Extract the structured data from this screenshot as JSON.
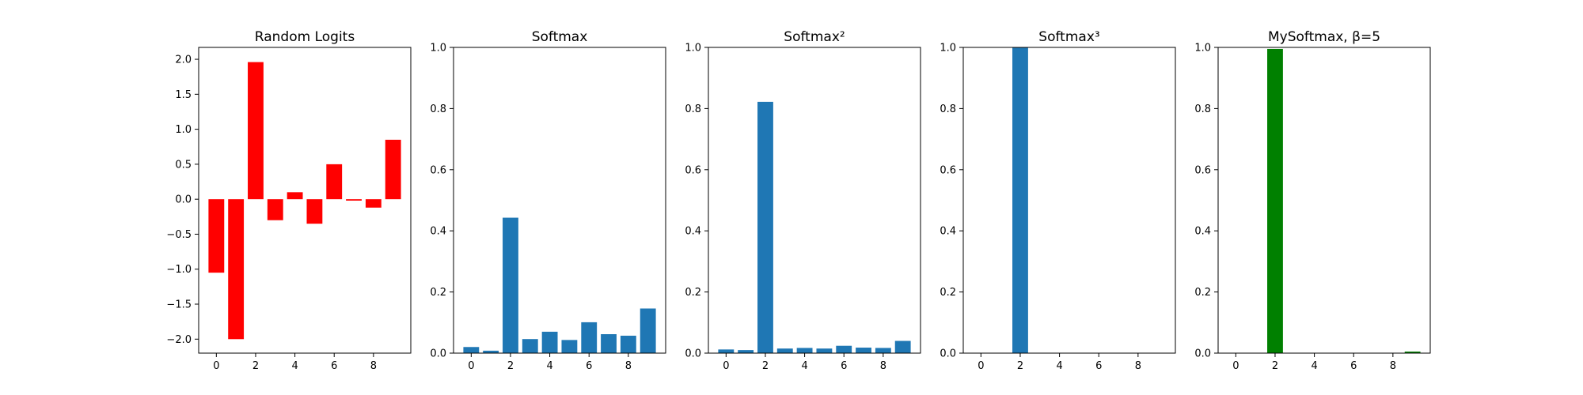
{
  "chart_data": [
    {
      "type": "bar",
      "title": "Random Logits",
      "x": [
        0,
        1,
        2,
        3,
        4,
        5,
        6,
        7,
        8,
        9
      ],
      "values": [
        -1.05,
        -2.0,
        1.96,
        -0.3,
        0.1,
        -0.35,
        0.5,
        -0.02,
        -0.12,
        0.85
      ],
      "color": "#ff0000",
      "ylim": [
        -2.2,
        2.17
      ],
      "yticks": [
        -2.0,
        -1.5,
        -1.0,
        -0.5,
        0.0,
        0.5,
        1.0,
        1.5,
        2.0
      ],
      "ytick_labels": [
        "−2.0",
        "−1.5",
        "−1.0",
        "−0.5",
        "0.0",
        "0.5",
        "1.0",
        "1.5",
        "2.0"
      ],
      "xticks": [
        0,
        2,
        4,
        6,
        8
      ],
      "xtick_labels": [
        "0",
        "2",
        "4",
        "6",
        "8"
      ],
      "xlabel": "",
      "ylabel": "",
      "grid": false
    },
    {
      "type": "bar",
      "title": "Softmax",
      "x": [
        0,
        1,
        2,
        3,
        4,
        5,
        6,
        7,
        8,
        9
      ],
      "values": [
        0.02,
        0.008,
        0.443,
        0.046,
        0.07,
        0.043,
        0.101,
        0.062,
        0.057,
        0.146
      ],
      "color": "#1f77b4",
      "ylim": [
        0.0,
        1.0
      ],
      "yticks": [
        0.0,
        0.2,
        0.4,
        0.6,
        0.8,
        1.0
      ],
      "ytick_labels": [
        "0.0",
        "0.2",
        "0.4",
        "0.6",
        "0.8",
        "1.0"
      ],
      "xticks": [
        0,
        2,
        4,
        6,
        8
      ],
      "xtick_labels": [
        "0",
        "2",
        "4",
        "6",
        "8"
      ],
      "xlabel": "",
      "ylabel": "",
      "grid": false
    },
    {
      "type": "bar",
      "title": "Softmax²",
      "x": [
        0,
        1,
        2,
        3,
        4,
        5,
        6,
        7,
        8,
        9
      ],
      "values": [
        0.012,
        0.01,
        0.822,
        0.015,
        0.017,
        0.015,
        0.024,
        0.018,
        0.017,
        0.04
      ],
      "color": "#1f77b4",
      "ylim": [
        0.0,
        1.0
      ],
      "yticks": [
        0.0,
        0.2,
        0.4,
        0.6,
        0.8,
        1.0
      ],
      "ytick_labels": [
        "0.0",
        "0.2",
        "0.4",
        "0.6",
        "0.8",
        "1.0"
      ],
      "xticks": [
        0,
        2,
        4,
        6,
        8
      ],
      "xtick_labels": [
        "0",
        "2",
        "4",
        "6",
        "8"
      ],
      "xlabel": "",
      "ylabel": "",
      "grid": false
    },
    {
      "type": "bar",
      "title": "Softmax³",
      "x": [
        0,
        1,
        2,
        3,
        4,
        5,
        6,
        7,
        8,
        9
      ],
      "values": [
        0.0,
        0.0,
        1.0,
        0.0,
        0.0,
        0.0,
        0.0,
        0.0,
        0.0,
        0.0
      ],
      "color": "#1f77b4",
      "ylim": [
        0.0,
        1.0
      ],
      "yticks": [
        0.0,
        0.2,
        0.4,
        0.6,
        0.8,
        1.0
      ],
      "ytick_labels": [
        "0.0",
        "0.2",
        "0.4",
        "0.6",
        "0.8",
        "1.0"
      ],
      "xticks": [
        0,
        2,
        4,
        6,
        8
      ],
      "xtick_labels": [
        "0",
        "2",
        "4",
        "6",
        "8"
      ],
      "xlabel": "",
      "ylabel": "",
      "grid": false
    },
    {
      "type": "bar",
      "title": "MySoftmax, β=5",
      "x": [
        0,
        1,
        2,
        3,
        4,
        5,
        6,
        7,
        8,
        9
      ],
      "values": [
        0.0,
        0.0,
        0.995,
        0.0,
        0.0,
        0.0,
        0.0,
        0.0,
        0.0,
        0.005
      ],
      "color": "#008000",
      "ylim": [
        0.0,
        1.0
      ],
      "yticks": [
        0.0,
        0.2,
        0.4,
        0.6,
        0.8,
        1.0
      ],
      "ytick_labels": [
        "0.0",
        "0.2",
        "0.4",
        "0.6",
        "0.8",
        "1.0"
      ],
      "xticks": [
        0,
        2,
        4,
        6,
        8
      ],
      "xtick_labels": [
        "0",
        "2",
        "4",
        "6",
        "8"
      ],
      "xlabel": "",
      "ylabel": "",
      "grid": false
    }
  ]
}
